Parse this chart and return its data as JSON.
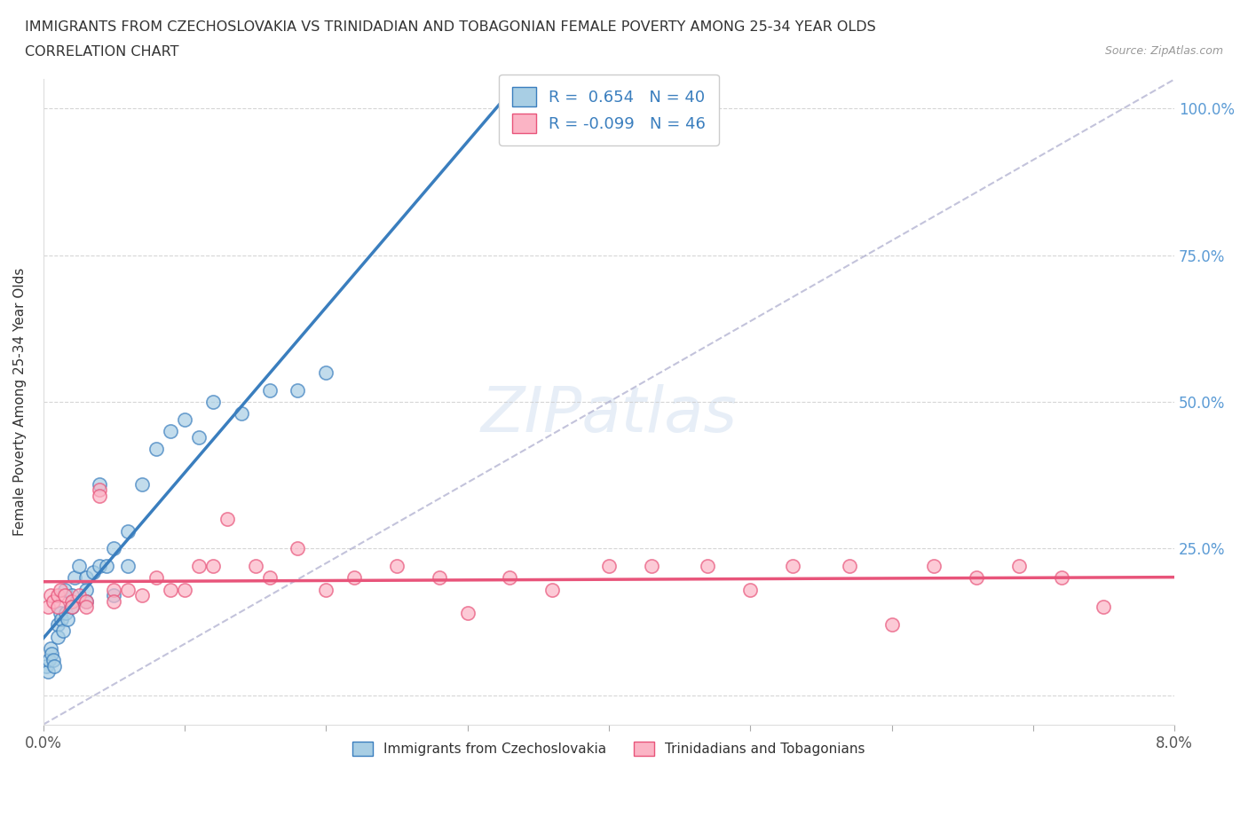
{
  "title_line1": "IMMIGRANTS FROM CZECHOSLOVAKIA VS TRINIDADIAN AND TOBAGONIAN FEMALE POVERTY AMONG 25-34 YEAR OLDS",
  "title_line2": "CORRELATION CHART",
  "source": "Source: ZipAtlas.com",
  "ylabel": "Female Poverty Among 25-34 Year Olds",
  "xlim": [
    0.0,
    0.08
  ],
  "ylim": [
    -0.05,
    1.05
  ],
  "r_czechoslovakia": 0.654,
  "n_czechoslovakia": 40,
  "r_trinidadian": -0.099,
  "n_trinidadian": 46,
  "color_czechoslovakia": "#a8cee4",
  "color_trinidadian": "#fbb4c5",
  "line_color_czechoslovakia": "#3a7ebe",
  "line_color_trinidadian": "#e8547a",
  "watermark": "ZIPatlas",
  "legend_label_czechoslovakia": "Immigrants from Czechoslovakia",
  "legend_label_trinidadian": "Trinidadians and Tobagonians",
  "czechoslovakia_x": [
    0.0002,
    0.0003,
    0.0004,
    0.0005,
    0.0006,
    0.0007,
    0.0008,
    0.001,
    0.001,
    0.0012,
    0.0013,
    0.0014,
    0.0015,
    0.0016,
    0.0017,
    0.002,
    0.002,
    0.0022,
    0.0025,
    0.003,
    0.003,
    0.003,
    0.0035,
    0.004,
    0.004,
    0.0045,
    0.005,
    0.005,
    0.006,
    0.006,
    0.007,
    0.008,
    0.009,
    0.01,
    0.011,
    0.012,
    0.014,
    0.016,
    0.018,
    0.02
  ],
  "czechoslovakia_y": [
    0.05,
    0.04,
    0.06,
    0.08,
    0.07,
    0.06,
    0.05,
    0.12,
    0.1,
    0.14,
    0.13,
    0.11,
    0.18,
    0.14,
    0.13,
    0.17,
    0.15,
    0.2,
    0.22,
    0.2,
    0.18,
    0.16,
    0.21,
    0.36,
    0.22,
    0.22,
    0.25,
    0.17,
    0.28,
    0.22,
    0.36,
    0.42,
    0.45,
    0.47,
    0.44,
    0.5,
    0.48,
    0.52,
    0.52,
    0.55
  ],
  "trinidadian_x": [
    0.0003,
    0.0005,
    0.0007,
    0.001,
    0.001,
    0.0012,
    0.0015,
    0.002,
    0.002,
    0.0025,
    0.003,
    0.003,
    0.004,
    0.004,
    0.005,
    0.005,
    0.006,
    0.007,
    0.008,
    0.009,
    0.01,
    0.011,
    0.012,
    0.013,
    0.015,
    0.016,
    0.018,
    0.02,
    0.022,
    0.025,
    0.028,
    0.03,
    0.033,
    0.036,
    0.04,
    0.043,
    0.047,
    0.05,
    0.053,
    0.057,
    0.06,
    0.063,
    0.066,
    0.069,
    0.072,
    0.075
  ],
  "trinidadian_y": [
    0.15,
    0.17,
    0.16,
    0.17,
    0.15,
    0.18,
    0.17,
    0.16,
    0.15,
    0.17,
    0.16,
    0.15,
    0.35,
    0.34,
    0.18,
    0.16,
    0.18,
    0.17,
    0.2,
    0.18,
    0.18,
    0.22,
    0.22,
    0.3,
    0.22,
    0.2,
    0.25,
    0.18,
    0.2,
    0.22,
    0.2,
    0.14,
    0.2,
    0.18,
    0.22,
    0.22,
    0.22,
    0.18,
    0.22,
    0.22,
    0.12,
    0.22,
    0.2,
    0.22,
    0.2,
    0.15
  ]
}
